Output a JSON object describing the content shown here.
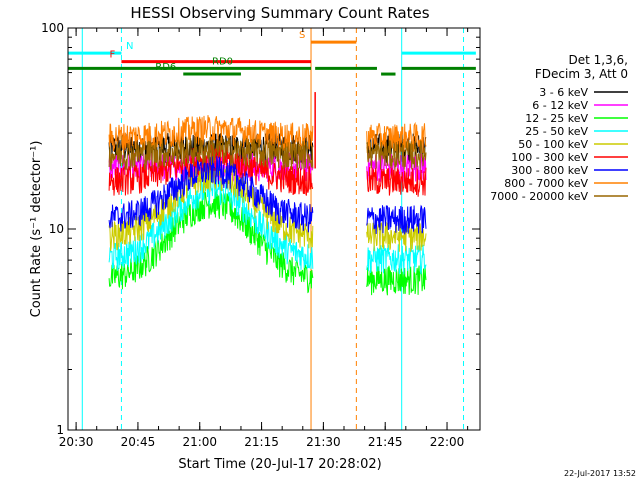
{
  "chart_data": {
    "type": "line",
    "title": "HESSI Observing Summary Count Rates",
    "xlabel": "Start Time (20-Jul-17 20:28:02)",
    "ylabel": "Count Rate (s⁻¹ detector⁻¹)",
    "ylog": true,
    "xlim": [
      "20:28:02",
      "22:08:00"
    ],
    "ylim": [
      1,
      100
    ],
    "x_ticks": [
      "20:30",
      "20:45",
      "21:00",
      "21:15",
      "21:30",
      "21:45",
      "22:00"
    ],
    "y_ticks": [
      "1",
      "10",
      "100"
    ],
    "timestamp": "22-Jul-2017 13:52",
    "legend_header": [
      "Det 1,3,6,",
      "FDecim 3, Att 0"
    ],
    "legend_position": "right",
    "series": [
      {
        "name": "3 - 6 keV",
        "color": "#000000",
        "base": 25,
        "hump": 0.0
      },
      {
        "name": "6 - 12 keV",
        "color": "#ff00ff",
        "base": 20,
        "hump": 0.0
      },
      {
        "name": "12 - 25 keV",
        "color": "#00ff00",
        "base": 5.5,
        "hump": 1.4
      },
      {
        "name": "25 - 50 keV",
        "color": "#00ffff",
        "base": 7,
        "hump": 1.2
      },
      {
        "name": "50 - 100 keV",
        "color": "#cccc00",
        "base": 9,
        "hump": 1.0
      },
      {
        "name": "100 - 300 keV",
        "color": "#ff0000",
        "base": 17,
        "hump": 0.3
      },
      {
        "name": "300 - 800 keV",
        "color": "#0000ff",
        "base": 11,
        "hump": 0.75
      },
      {
        "name": "800 - 7000 keV",
        "color": "#ff8000",
        "base": 28,
        "hump": 0.1
      },
      {
        "name": "7000 - 20000 keV",
        "color": "#996600",
        "base": 23,
        "hump": 0.05
      }
    ],
    "flag_bars": [
      {
        "label": "N",
        "color": "#00ffff",
        "segments": [
          [
            "20:28:02",
            "20:41:00"
          ],
          [
            "21:49:00",
            "22:07:00"
          ]
        ],
        "level": 75
      },
      {
        "label": "F",
        "color": "#ff0000",
        "segments": [
          [
            "20:41:00",
            "21:27:00"
          ]
        ],
        "level": 68
      },
      {
        "label": "RD0",
        "color": "#008000",
        "segments": [
          [
            "20:28:02",
            "21:27:00"
          ],
          [
            "21:28:00",
            "21:43:00"
          ],
          [
            "21:49:00",
            "22:07:00"
          ]
        ],
        "level": 63
      },
      {
        "label": "RD6",
        "color": "#008000",
        "segments": [
          [
            "20:56:00",
            "21:10:00"
          ],
          [
            "21:44:00",
            "21:47:30"
          ]
        ],
        "level": 59
      },
      {
        "label": "S",
        "color": "#ff8000",
        "segments": [
          [
            "21:27:00",
            "21:38:00"
          ]
        ],
        "level": 85
      }
    ],
    "vertical_markers": [
      {
        "time": "20:31:30",
        "color": "#00ffff",
        "style": "solid"
      },
      {
        "time": "20:41:00",
        "color": "#00ffff",
        "style": "dashed"
      },
      {
        "time": "21:27:00",
        "color": "#ff8000",
        "style": "solid"
      },
      {
        "time": "21:38:00",
        "color": "#ff8000",
        "style": "dashed"
      },
      {
        "time": "21:49:00",
        "color": "#00ffff",
        "style": "solid"
      },
      {
        "time": "22:04:00",
        "color": "#00ffff",
        "style": "dashed"
      }
    ],
    "data_intervals": [
      [
        "20:38:00",
        "21:27:30"
      ],
      [
        "21:40:30",
        "21:55:00"
      ]
    ],
    "spike": {
      "time": "21:28:00",
      "value": 48
    }
  }
}
